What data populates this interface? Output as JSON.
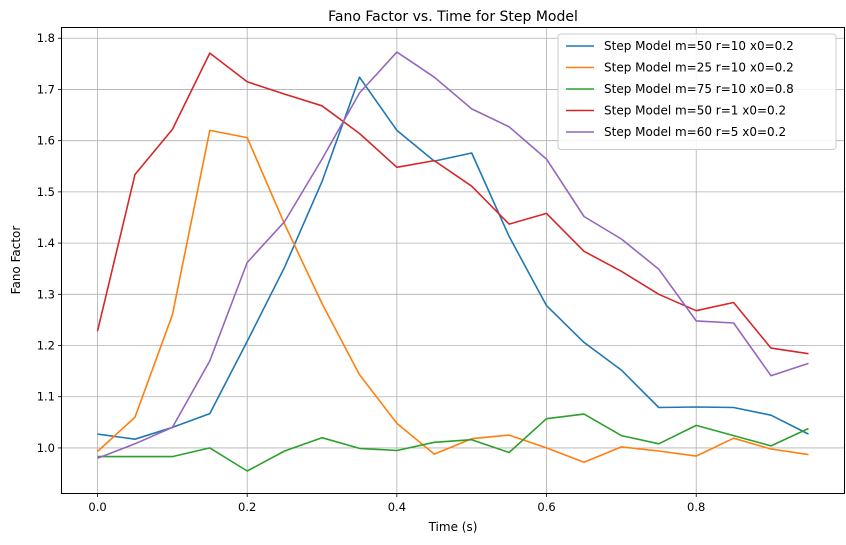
{
  "chart_data": {
    "type": "line",
    "title": "Fano Factor vs. Time for Step Model",
    "xlabel": "Time (s)",
    "ylabel": "Fano Factor",
    "xlim": [
      -0.0475,
      0.9975
    ],
    "ylim": [
      0.912,
      1.82
    ],
    "xticks": [
      0.0,
      0.2,
      0.4,
      0.6,
      0.8
    ],
    "xtick_labels": [
      "0.0",
      "0.2",
      "0.4",
      "0.6",
      "0.8"
    ],
    "yticks": [
      1.0,
      1.1,
      1.2,
      1.3,
      1.4,
      1.5,
      1.6,
      1.7,
      1.8
    ],
    "ytick_labels": [
      "1.0",
      "1.1",
      "1.2",
      "1.3",
      "1.4",
      "1.5",
      "1.6",
      "1.7",
      "1.8"
    ],
    "grid": true,
    "legend_position": "top-right",
    "x": [
      0.0,
      0.05,
      0.1,
      0.15,
      0.2,
      0.25,
      0.3,
      0.35,
      0.4,
      0.45,
      0.5,
      0.55,
      0.6,
      0.65,
      0.7,
      0.75,
      0.8,
      0.85,
      0.9,
      0.95
    ],
    "series": [
      {
        "name": "Step Model m=50 r=10 x0=0.2",
        "color": "#1f77b4",
        "values": [
          1.027,
          1.017,
          1.04,
          1.067,
          1.208,
          1.353,
          1.52,
          1.724,
          1.62,
          1.56,
          1.576,
          1.413,
          1.278,
          1.206,
          1.152,
          1.079,
          1.08,
          1.079,
          1.064,
          1.027
        ]
      },
      {
        "name": "Step Model m=25 r=10 x0=0.2",
        "color": "#ff7f0e",
        "values": [
          0.993,
          1.06,
          1.26,
          1.62,
          1.606,
          1.437,
          1.282,
          1.143,
          1.048,
          0.988,
          1.018,
          1.025,
          1.0,
          0.972,
          1.002,
          0.994,
          0.984,
          1.019,
          0.998,
          0.987
        ]
      },
      {
        "name": "Step Model m=75 r=10 x0=0.8",
        "color": "#2ca02c",
        "values": [
          0.983,
          0.983,
          0.983,
          1.0,
          0.955,
          0.994,
          1.02,
          0.999,
          0.995,
          1.011,
          1.016,
          0.991,
          1.057,
          1.066,
          1.024,
          1.008,
          1.044,
          1.024,
          1.004,
          1.038
        ]
      },
      {
        "name": "Step Model m=50 r=1 x0=0.2",
        "color": "#d62728",
        "values": [
          1.228,
          1.534,
          1.622,
          1.771,
          1.715,
          1.691,
          1.668,
          1.614,
          1.548,
          1.561,
          1.511,
          1.437,
          1.458,
          1.384,
          1.345,
          1.3,
          1.268,
          1.284,
          1.195,
          1.184
        ]
      },
      {
        "name": "Step Model m=60 r=5 x0=0.2",
        "color": "#9467bd",
        "values": [
          0.98,
          1.008,
          1.04,
          1.17,
          1.362,
          1.442,
          1.564,
          1.693,
          1.773,
          1.724,
          1.662,
          1.627,
          1.564,
          1.452,
          1.408,
          1.349,
          1.248,
          1.244,
          1.141,
          1.165
        ]
      }
    ]
  }
}
